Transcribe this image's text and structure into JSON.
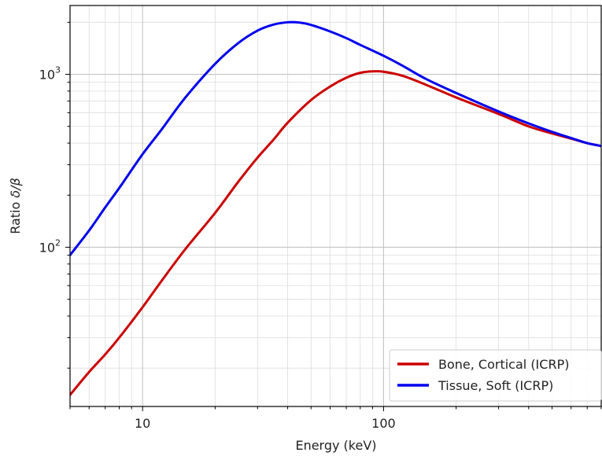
{
  "chart_data": {
    "type": "line",
    "xlabel": "Energy (keV)",
    "ylabel_prefix": "Ratio ",
    "ylabel_symbol": "δ/β",
    "x_scale": "log",
    "y_scale": "log",
    "xlim": [
      5,
      800
    ],
    "ylim": [
      12,
      2500
    ],
    "grid": true,
    "legend_position": "bottom-right",
    "x_ticks": [
      {
        "value": 10,
        "label": "10"
      },
      {
        "value": 100,
        "label": "100"
      }
    ],
    "y_ticks": [
      {
        "value": 100,
        "base": "10",
        "exp": "2"
      },
      {
        "value": 1000,
        "base": "10",
        "exp": "3"
      }
    ],
    "series": [
      {
        "name": "Bone, Cortical (ICRP)",
        "color": "#cc0000",
        "x": [
          5,
          6,
          7,
          8,
          10,
          12,
          15,
          20,
          25,
          30,
          35,
          40,
          50,
          60,
          70,
          80,
          90,
          100,
          120,
          150,
          200,
          300,
          400,
          500,
          600,
          700,
          800
        ],
        "y": [
          14,
          19,
          24,
          30,
          45,
          64,
          97,
          158,
          240,
          330,
          420,
          525,
          710,
          850,
          955,
          1020,
          1040,
          1035,
          980,
          870,
          735,
          590,
          500,
          455,
          425,
          400,
          385
        ]
      },
      {
        "name": "Tissue, Soft (ICRP)",
        "color": "#0000ee",
        "x": [
          5,
          6,
          7,
          8,
          10,
          12,
          15,
          20,
          25,
          30,
          35,
          40,
          45,
          50,
          60,
          70,
          80,
          100,
          120,
          150,
          200,
          300,
          400,
          500,
          600,
          700,
          800
        ],
        "y": [
          90,
          125,
          170,
          220,
          345,
          480,
          730,
          1150,
          1520,
          1790,
          1940,
          2000,
          1990,
          1930,
          1770,
          1620,
          1480,
          1280,
          1120,
          940,
          780,
          610,
          520,
          465,
          428,
          400,
          385
        ]
      }
    ]
  }
}
